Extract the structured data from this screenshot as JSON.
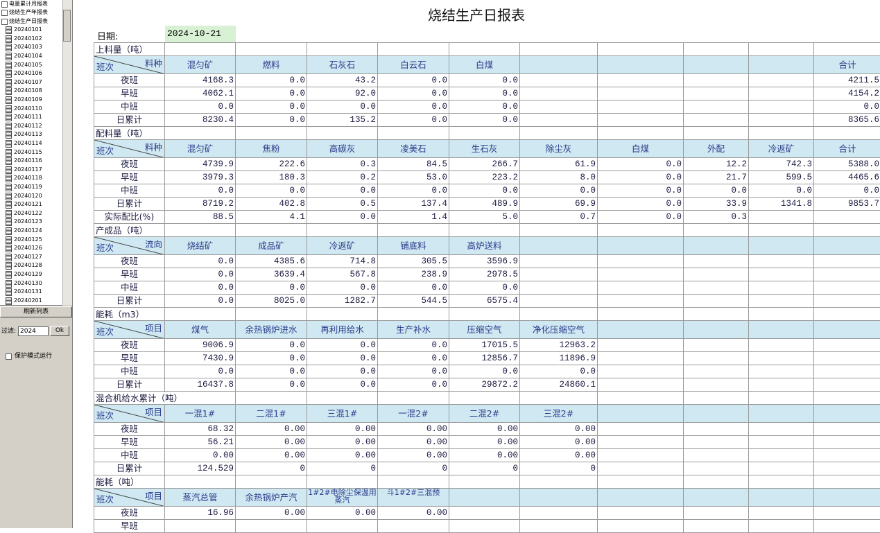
{
  "sidebar": {
    "tree": [
      {
        "label": "电量累计月报表"
      },
      {
        "label": "烧结生产年报表"
      },
      {
        "label": "烧结生产日报表",
        "children": [
          "20240101",
          "20240102",
          "20240103",
          "20240104",
          "20240105",
          "20240106",
          "20240107",
          "20240108",
          "20240109",
          "20240110",
          "20240111",
          "20240112",
          "20240113",
          "20240114",
          "20240115",
          "20240116",
          "20240117",
          "20240118",
          "20240119",
          "20240120",
          "20240121",
          "20240122",
          "20240123",
          "20240124",
          "20240125",
          "20240126",
          "20240127",
          "20240128",
          "20240129",
          "20240130",
          "20240131",
          "20240201"
        ]
      }
    ],
    "refresh_button": "刷新列表",
    "filter_label": "过滤:",
    "filter_value": "2024",
    "ok_button": "Ok",
    "checkbox_label": "保护模式运行"
  },
  "report": {
    "title": "烧结生产日报表",
    "date_label": "日期:",
    "date": "2024-10-21",
    "row_header": "班次",
    "sections": [
      {
        "title": "上料量（吨）",
        "corner": "料种",
        "columns": [
          "混匀矿",
          "燃料",
          "石灰石",
          "白云石",
          "白煤",
          null,
          null,
          null,
          null,
          "合计"
        ],
        "rows": [
          {
            "label": "夜班",
            "cells": [
              "4168.3",
              "0.0",
              "43.2",
              "0.0",
              "0.0",
              null,
              null,
              null,
              null,
              "4211.5"
            ]
          },
          {
            "label": "早班",
            "cells": [
              "4062.1",
              "0.0",
              "92.0",
              "0.0",
              "0.0",
              null,
              null,
              null,
              null,
              "4154.2"
            ]
          },
          {
            "label": "中班",
            "cells": [
              "0.0",
              "0.0",
              "0.0",
              "0.0",
              "0.0",
              null,
              null,
              null,
              null,
              "0.0"
            ]
          },
          {
            "label": "日累计",
            "cells": [
              "8230.4",
              "0.0",
              "135.2",
              "0.0",
              "0.0",
              null,
              null,
              null,
              null,
              "8365.6"
            ]
          }
        ]
      },
      {
        "title": "配料量（吨）",
        "corner": "料种",
        "columns": [
          "混匀矿",
          "焦粉",
          "高碳灰",
          "凌美石",
          "生石灰",
          "除尘灰",
          "白煤",
          "外配",
          "冷返矿",
          "合计"
        ],
        "rows": [
          {
            "label": "夜班",
            "cells": [
              "4739.9",
              "222.6",
              "0.3",
              "84.5",
              "266.7",
              "61.9",
              "0.0",
              "12.2",
              "742.3",
              "5388.0"
            ]
          },
          {
            "label": "早班",
            "cells": [
              "3979.3",
              "180.3",
              "0.2",
              "53.0",
              "223.2",
              "8.0",
              "0.0",
              "21.7",
              "599.5",
              "4465.6"
            ]
          },
          {
            "label": "中班",
            "cells": [
              "0.0",
              "0.0",
              "0.0",
              "0.0",
              "0.0",
              "0.0",
              "0.0",
              "0.0",
              "0.0",
              "0.0"
            ]
          },
          {
            "label": "日累计",
            "cells": [
              "8719.2",
              "402.8",
              "0.5",
              "137.4",
              "489.9",
              "69.9",
              "0.0",
              "33.9",
              "1341.8",
              "9853.7"
            ]
          },
          {
            "label": "实际配比(%)",
            "cells": [
              "88.5",
              "4.1",
              "0.0",
              "1.4",
              "5.0",
              "0.7",
              "0.0",
              "0.3",
              null,
              null
            ]
          }
        ]
      },
      {
        "title": "产成品（吨）",
        "corner": "流向",
        "columns": [
          "烧结矿",
          "成品矿",
          "冷返矿",
          "铺底料",
          "高炉送料"
        ],
        "rows": [
          {
            "label": "夜班",
            "cells": [
              "0.0",
              "4385.6",
              "714.8",
              "305.5",
              "3596.9"
            ]
          },
          {
            "label": "早班",
            "cells": [
              "0.0",
              "3639.4",
              "567.8",
              "238.9",
              "2978.5"
            ]
          },
          {
            "label": "中班",
            "cells": [
              "0.0",
              "0.0",
              "0.0",
              "0.0",
              "0.0"
            ]
          },
          {
            "label": "日累计",
            "cells": [
              "0.0",
              "8025.0",
              "1282.7",
              "544.5",
              "6575.4"
            ]
          }
        ]
      },
      {
        "title": "能耗（m3）",
        "corner": "项目",
        "columns": [
          "煤气",
          "余热锅炉进水",
          "再利用给水",
          "生产补水",
          "压缩空气",
          "净化压缩空气"
        ],
        "rows": [
          {
            "label": "夜班",
            "cells": [
              "9006.9",
              "0.0",
              "0.0",
              "0.0",
              "17015.5",
              "12963.2"
            ]
          },
          {
            "label": "早班",
            "cells": [
              "7430.9",
              "0.0",
              "0.0",
              "0.0",
              "12856.7",
              "11896.9"
            ]
          },
          {
            "label": "中班",
            "cells": [
              "0.0",
              "0.0",
              "0.0",
              "0.0",
              "0.0",
              "0.0"
            ]
          },
          {
            "label": "日累计",
            "cells": [
              "16437.8",
              "0.0",
              "0.0",
              "0.0",
              "29872.2",
              "24860.1"
            ]
          }
        ]
      },
      {
        "title": "混合机给水累计（吨）",
        "corner": "项目",
        "columns": [
          "一混1#",
          "二混1#",
          "三混1#",
          "一混2#",
          "二混2#",
          "三混2#"
        ],
        "rows": [
          {
            "label": "夜班",
            "cells": [
              "68.32",
              "0.00",
              "0.00",
              "0.00",
              "0.00",
              "0.00"
            ]
          },
          {
            "label": "早班",
            "cells": [
              "56.21",
              "0.00",
              "0.00",
              "0.00",
              "0.00",
              "0.00"
            ]
          },
          {
            "label": "中班",
            "cells": [
              "0.00",
              "0.00",
              "0.00",
              "0.00",
              "0.00",
              "0.00"
            ]
          },
          {
            "label": "日累计",
            "cells": [
              "124.529",
              "0",
              "0",
              "0",
              "0",
              "0"
            ]
          }
        ]
      },
      {
        "title": "能耗（吨）",
        "corner": "项目",
        "columns": [
          "蒸汽总管",
          "余热锅炉产汽",
          "1#2#电除尘保温用蒸汽",
          "斗1#2#三混预"
        ],
        "rows": [
          {
            "label": "夜班",
            "cells": [
              "16.96",
              "0.00",
              "0.00",
              "0.00"
            ]
          },
          {
            "label": "早班",
            "cells": [
              null,
              null,
              null,
              null
            ]
          }
        ]
      }
    ]
  }
}
